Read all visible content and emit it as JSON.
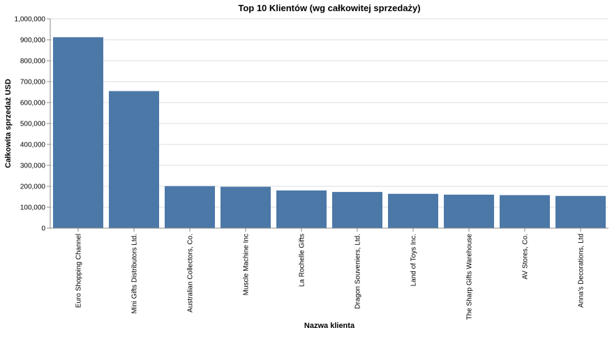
{
  "chart_data": {
    "type": "bar",
    "title": "Top 10 Klientów (wg całkowitej sprzedaży)",
    "xlabel": "Nazwa klienta",
    "ylabel": "Całkowita sprzedaż USD",
    "ylim": [
      0,
      1000000
    ],
    "yticks": [
      {
        "value": 0,
        "label": "0"
      },
      {
        "value": 100000,
        "label": "100,000"
      },
      {
        "value": 200000,
        "label": "200,000"
      },
      {
        "value": 300000,
        "label": "300,000"
      },
      {
        "value": 400000,
        "label": "400,000"
      },
      {
        "value": 500000,
        "label": "500,000"
      },
      {
        "value": 600000,
        "label": "600,000"
      },
      {
        "value": 700000,
        "label": "700,000"
      },
      {
        "value": 800000,
        "label": "800,000"
      },
      {
        "value": 900000,
        "label": "900,000"
      },
      {
        "value": 1000000,
        "label": "1,000,000"
      }
    ],
    "grid": true,
    "bar_color": "#4c78a8",
    "categories": [
      "Euro Shopping Channel",
      "Mini Gifts Distributors Ltd.",
      "Australian Collectors, Co.",
      "Muscle Machine Inc",
      "La Rochelle Gifts",
      "Dragon Souveniers, Ltd.",
      "Land of Toys Inc.",
      "The Sharp Gifts Warehouse",
      "AV Stores, Co.",
      "Anna's Decorations, Ltd"
    ],
    "values": [
      912294,
      654858,
      200995,
      197736,
      180125,
      172990,
      164069,
      160010,
      157808,
      153996
    ]
  }
}
